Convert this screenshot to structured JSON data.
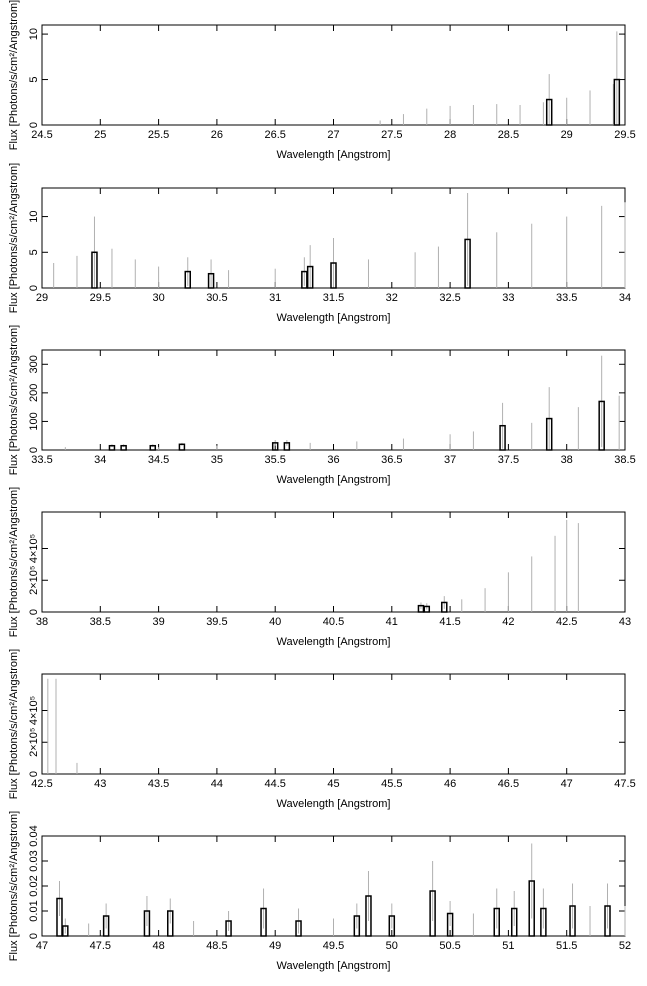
{
  "chart_data": [
    {
      "type": "bar",
      "xlabel": "Wavelength [Angstrom]",
      "ylabel": "Flux [Photons/s/cm²/Angstrom]",
      "xlim": [
        24.5,
        29.5
      ],
      "xticks": [
        24.5,
        25,
        25.5,
        26,
        26.5,
        27,
        27.5,
        28,
        28.5,
        29,
        29.5
      ],
      "ylim": [
        0,
        11
      ],
      "yticks": [
        0,
        5,
        10
      ],
      "color": "#000000",
      "error_color": "#b0b0b0",
      "x": [
        27.4,
        27.6,
        27.8,
        28.0,
        28.2,
        28.4,
        28.6,
        28.8,
        28.85,
        29.0,
        29.2,
        29.4,
        29.43
      ],
      "values": [
        0,
        0,
        0,
        0,
        0,
        0,
        0,
        0,
        2.8,
        0,
        0,
        0,
        5
      ],
      "errors": [
        0.5,
        1.2,
        1.8,
        2.1,
        2.2,
        2.3,
        2.2,
        2.5,
        2.8,
        3,
        3.8,
        4.5,
        5.3
      ]
    },
    {
      "type": "bar",
      "xlabel": "Wavelength [Angstrom]",
      "ylabel": "Flux [Photons/s/cm²/Angstrom]",
      "xlim": [
        29,
        34
      ],
      "xticks": [
        29,
        29.5,
        30,
        30.5,
        31,
        31.5,
        32,
        32.5,
        33,
        33.5,
        34
      ],
      "ylim": [
        0,
        14
      ],
      "yticks": [
        0,
        5,
        10
      ],
      "color": "#000000",
      "error_color": "#b0b0b0",
      "x": [
        29.1,
        29.3,
        29.45,
        29.6,
        29.8,
        30.0,
        30.25,
        30.45,
        30.6,
        31.0,
        31.25,
        31.3,
        31.5,
        31.8,
        32.2,
        32.4,
        32.65,
        32.9,
        33.2,
        33.5,
        33.8,
        34.0
      ],
      "values": [
        0,
        0,
        5,
        0,
        0,
        0,
        2.3,
        2,
        0,
        0,
        2.3,
        3,
        3.5,
        0,
        0,
        0,
        6.8,
        0,
        0,
        0,
        0,
        0
      ],
      "errors": [
        3.5,
        4.5,
        5,
        5.5,
        4,
        3,
        2,
        2,
        2.5,
        2.7,
        2,
        3,
        3.5,
        4,
        5,
        5.8,
        6.5,
        7.8,
        9,
        10,
        11.5,
        12
      ]
    },
    {
      "type": "bar",
      "xlabel": "Wavelength [Angstrom]",
      "ylabel": "Flux [Photons/s/cm²/Angstrom]",
      "xlim": [
        33.5,
        38.5
      ],
      "xticks": [
        33.5,
        34,
        34.5,
        35,
        35.5,
        36,
        36.5,
        37,
        37.5,
        38,
        38.5
      ],
      "ylim": [
        0,
        350
      ],
      "yticks": [
        0,
        100,
        200,
        300
      ],
      "color": "#000000",
      "error_color": "#b0b0b0",
      "x": [
        33.7,
        34.1,
        34.2,
        34.45,
        34.5,
        34.7,
        35.0,
        35.5,
        35.6,
        35.8,
        36.2,
        36.6,
        37.0,
        37.2,
        37.45,
        37.7,
        37.85,
        38.1,
        38.3,
        38.45
      ],
      "values": [
        0,
        15,
        15,
        15,
        0,
        20,
        0,
        25,
        25,
        0,
        0,
        0,
        0,
        0,
        85,
        0,
        110,
        0,
        170,
        0
      ],
      "errors": [
        10,
        5,
        5,
        5,
        10,
        5,
        15,
        10,
        10,
        25,
        30,
        40,
        55,
        65,
        80,
        95,
        110,
        150,
        160,
        190
      ]
    },
    {
      "type": "bar",
      "xlabel": "Wavelength [Angstrom]",
      "ylabel": "Flux [Photons/s/cm²/Angstrom]",
      "xlim": [
        38,
        43
      ],
      "xticks": [
        38,
        38.5,
        39,
        39.5,
        40,
        40.5,
        41,
        41.5,
        42,
        42.5,
        43
      ],
      "ylim": [
        0,
        630000
      ],
      "yticks": [
        0,
        {
          "value": 200000,
          "label": "2×10⁵"
        },
        {
          "value": 400000,
          "label": "4×10⁵"
        }
      ],
      "color": "#000000",
      "error_color": "#b0b0b0",
      "x": [
        41.25,
        41.3,
        41.45,
        41.6,
        41.8,
        42.0,
        42.2,
        42.4,
        42.5,
        42.6
      ],
      "values": [
        40000,
        35000,
        60000,
        0,
        0,
        0,
        0,
        0,
        0,
        0
      ],
      "errors": [
        20000,
        20000,
        40000,
        80000,
        150000,
        250000,
        350000,
        480000,
        580000,
        560000
      ]
    },
    {
      "type": "bar",
      "xlabel": "Wavelength [Angstrom]",
      "ylabel": "Flux [Photons/s/cm²/Angstrom]",
      "xlim": [
        42.5,
        47.5
      ],
      "xticks": [
        42.5,
        43,
        43.5,
        44,
        44.5,
        45,
        45.5,
        46,
        46.5,
        47,
        47.5
      ],
      "ylim": [
        0,
        630000
      ],
      "yticks": [
        0,
        {
          "value": 200000,
          "label": "2×10⁵"
        },
        {
          "value": 400000,
          "label": "4×10⁵"
        }
      ],
      "color": "#000000",
      "error_color": "#b0b0b0",
      "x": [
        42.55,
        42.62,
        42.8
      ],
      "values": [
        0,
        0,
        0
      ],
      "errors": [
        600000,
        600000,
        70000
      ]
    },
    {
      "type": "bar",
      "xlabel": "Wavelength [Angstrom]",
      "ylabel": "Flux [Photons/s/cm²/Angstrom]",
      "xlim": [
        47,
        52
      ],
      "xticks": [
        47,
        47.5,
        48,
        48.5,
        49,
        49.5,
        50,
        50.5,
        51,
        51.5,
        52
      ],
      "ylim": [
        0,
        0.04
      ],
      "yticks": [
        0,
        0.01,
        0.02,
        0.03,
        0.04
      ],
      "color": "#000000",
      "error_color": "#b0b0b0",
      "x": [
        47.15,
        47.2,
        47.4,
        47.55,
        47.9,
        48.1,
        48.3,
        48.6,
        48.9,
        49.2,
        49.5,
        49.7,
        49.8,
        50.0,
        50.35,
        50.5,
        50.7,
        50.9,
        51.05,
        51.2,
        51.3,
        51.55,
        51.7,
        51.85,
        52.0
      ],
      "values": [
        0.015,
        0.004,
        0,
        0.008,
        0.01,
        0.01,
        0,
        0.006,
        0.011,
        0.006,
        0,
        0.008,
        0.016,
        0.008,
        0.018,
        0.009,
        0,
        0.011,
        0.011,
        0.022,
        0.011,
        0.012,
        0,
        0.012,
        0
      ],
      "errors": [
        0.007,
        0.003,
        0.005,
        0.005,
        0.006,
        0.005,
        0.006,
        0.004,
        0.008,
        0.005,
        0.007,
        0.005,
        0.01,
        0.005,
        0.012,
        0.005,
        0.009,
        0.008,
        0.007,
        0.015,
        0.008,
        0.009,
        0.012,
        0.009,
        0.012
      ]
    }
  ]
}
